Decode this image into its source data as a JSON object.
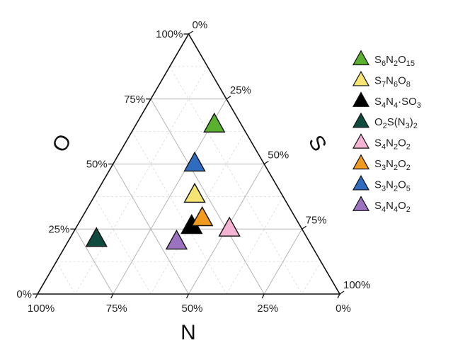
{
  "chart_data": {
    "type": "scatter",
    "subtype": "ternary",
    "title": "",
    "axes": {
      "O": {
        "label": "O",
        "ticks": [
          "0%",
          "25%",
          "50%",
          "75%",
          "100%"
        ]
      },
      "S": {
        "label": "S",
        "ticks": [
          "0%",
          "25%",
          "50%",
          "75%",
          "100%"
        ]
      },
      "N": {
        "label": "N",
        "ticks": [
          "100%",
          "75%",
          "50%",
          "25%",
          "0%"
        ]
      }
    },
    "axis_range": [
      0,
      100
    ],
    "grid": true,
    "legend_position": "right",
    "series": [
      {
        "name": "S6N2O15",
        "label_parts": [
          [
            "S",
            ""
          ],
          [
            "6",
            "sub"
          ],
          [
            "N",
            ""
          ],
          [
            "2",
            "sub"
          ],
          [
            "O",
            ""
          ],
          [
            "15",
            "sub"
          ]
        ],
        "color": "#5bb030",
        "N": 9,
        "S": 26,
        "O": 65
      },
      {
        "name": "S7N6O8",
        "label_parts": [
          [
            "S",
            ""
          ],
          [
            "7",
            "sub"
          ],
          [
            "N",
            ""
          ],
          [
            "6",
            "sub"
          ],
          [
            "O",
            ""
          ],
          [
            "8",
            "sub"
          ]
        ],
        "color": "#f5e472",
        "N": 29,
        "S": 33,
        "O": 38
      },
      {
        "name": "S4N4·SO3",
        "label_parts": [
          [
            "S",
            ""
          ],
          [
            "4",
            "sub"
          ],
          [
            "N",
            ""
          ],
          [
            "4",
            "sub"
          ],
          [
            "·SO",
            ""
          ],
          [
            "3",
            "sub"
          ]
        ],
        "color": "#000000",
        "N": 36,
        "S": 38,
        "O": 26
      },
      {
        "name": "O2S(N3)2",
        "label_parts": [
          [
            "O",
            ""
          ],
          [
            "2",
            "sub"
          ],
          [
            "S(N",
            ""
          ],
          [
            "3",
            "sub"
          ],
          [
            ")",
            ""
          ],
          [
            "2",
            "sub"
          ]
        ],
        "color": "#0e4a3e",
        "N": 70,
        "S": 9,
        "O": 21
      },
      {
        "name": "S4N2O2",
        "label_parts": [
          [
            "S",
            ""
          ],
          [
            "4",
            "sub"
          ],
          [
            "N",
            ""
          ],
          [
            "2",
            "sub"
          ],
          [
            "O",
            ""
          ],
          [
            "2",
            "sub"
          ]
        ],
        "color": "#f5b4d4",
        "N": 24,
        "S": 51,
        "O": 25
      },
      {
        "name": "S3N2O2",
        "label_parts": [
          [
            "S",
            ""
          ],
          [
            "3",
            "sub"
          ],
          [
            "N",
            ""
          ],
          [
            "2",
            "sub"
          ],
          [
            "O",
            ""
          ],
          [
            "2",
            "sub"
          ]
        ],
        "color": "#f09a1e",
        "N": 31,
        "S": 40,
        "O": 29
      },
      {
        "name": "S3N2O5",
        "label_parts": [
          [
            "S",
            ""
          ],
          [
            "3",
            "sub"
          ],
          [
            "N",
            ""
          ],
          [
            "2",
            "sub"
          ],
          [
            "O",
            ""
          ],
          [
            "5",
            "sub"
          ]
        ],
        "color": "#2f6bbf",
        "N": 23,
        "S": 27,
        "O": 50
      },
      {
        "name": "S4N4O2",
        "label_parts": [
          [
            "S",
            ""
          ],
          [
            "4",
            "sub"
          ],
          [
            "N",
            ""
          ],
          [
            "4",
            "sub"
          ],
          [
            "O",
            ""
          ],
          [
            "2",
            "sub"
          ]
        ],
        "color": "#9b72c0",
        "N": 44,
        "S": 36,
        "O": 20
      }
    ]
  }
}
